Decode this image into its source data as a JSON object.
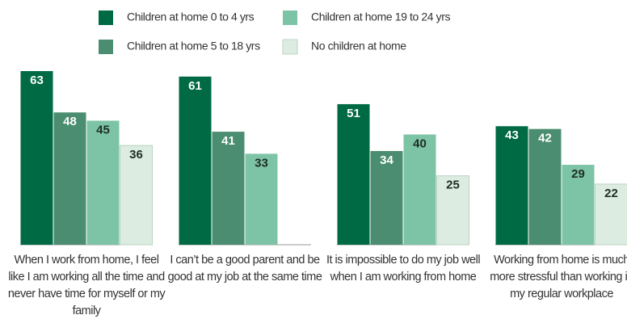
{
  "chart_data": {
    "type": "bar",
    "categories": [
      "When I work from home, I feel like I am working all the time and never have time for myself or my family",
      "I can’t be a good parent and be good at my job at the same time",
      "It is impossible to do my job well when I am working from home",
      "Working from home is much more stressful than working in my regular workplace"
    ],
    "series": [
      {
        "name": "Children at home 0 to 4 yrs",
        "color": "#006a45",
        "values": [
          63,
          61,
          51,
          43
        ]
      },
      {
        "name": "Children at home 5 to 18 yrs",
        "color": "#4b8d70",
        "values": [
          48,
          41,
          34,
          42
        ]
      },
      {
        "name": "Children at home 19 to 24 yrs",
        "color": "#7dc4a7",
        "values": [
          45,
          33,
          40,
          29
        ]
      },
      {
        "name": "No children at home",
        "color": "#dcece1",
        "values": [
          36,
          null,
          25,
          22
        ]
      }
    ]
  }
}
